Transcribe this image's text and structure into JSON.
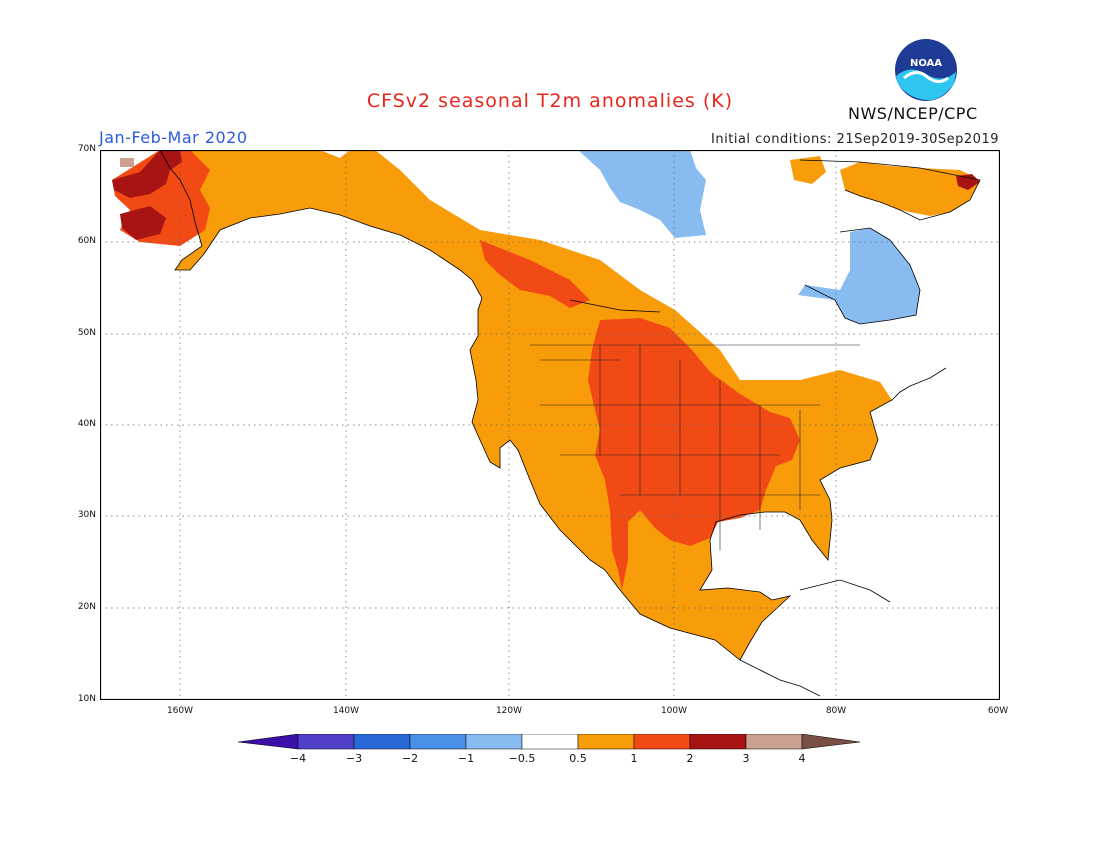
{
  "title": "CFSv2 seasonal T2m anomalies (K)",
  "season": "Jan-Feb-Mar 2020",
  "initial_conditions": "Initial conditions: 21Sep2019-30Sep2019",
  "organization": "NWS/NCEP/CPC",
  "logo_text": "NOAA",
  "map": {
    "lat_labels": [
      "70N",
      "60N",
      "50N",
      "40N",
      "30N",
      "20N",
      "10N"
    ],
    "lon_labels": [
      "160W",
      "140W",
      "120W",
      "100W",
      "80W",
      "60W"
    ]
  },
  "colorbar": {
    "labels": [
      "−4",
      "−3",
      "−2",
      "−1",
      "−0.5",
      "0.5",
      "1",
      "2",
      "3",
      "4"
    ],
    "colors": [
      "#3a10a8",
      "#5040c8",
      "#2a6ad8",
      "#4a90e8",
      "#88bcf0",
      "#ffffff",
      "#f89c0a",
      "#f24a14",
      "#a81414",
      "#cca090",
      "#7a4e42"
    ]
  },
  "legend_colors": {
    "anom_0_5_to_1": "#f89c0a",
    "anom_1_to_2": "#f24a14",
    "anom_2_to_3": "#a81414",
    "anom_3_to_4": "#cca090",
    "anom_minus_1_to_minus_0_5": "#88bcf0"
  }
}
